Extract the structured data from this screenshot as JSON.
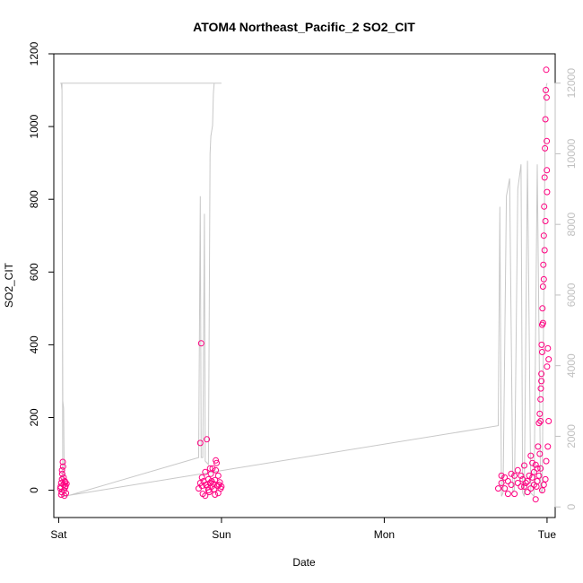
{
  "chart_data": {
    "type": "scatter",
    "title": "ATOM4 Northeast_Pacific_2 SO2_CIT",
    "xlabel": "Date",
    "ylabel": "SO2_CIT",
    "x_ticks": [
      "Sat",
      "Sun",
      "Mon",
      "Tue"
    ],
    "x_tick_values": [
      0,
      1,
      2,
      3
    ],
    "xlim": [
      -0.03,
      3.05
    ],
    "y_ticks": [
      0,
      200,
      400,
      600,
      800,
      1000,
      1200
    ],
    "ylim": [
      -75,
      1200
    ],
    "y2_ticks": [
      0,
      2000,
      4000,
      6000,
      8000,
      10000,
      12000
    ],
    "y2lim": [
      -300,
      12830
    ],
    "grid": false,
    "legend": "none",
    "colors": {
      "points": "#ff0080",
      "altitude_line": "#c8c8c8",
      "axis": "#000000",
      "right_axis": "#c0c0c0"
    },
    "series": [
      {
        "values_note_free": true,
        "points": [
          [
            0.01,
            5
          ],
          [
            0.012,
            10
          ],
          [
            0.015,
            20
          ],
          [
            0.018,
            -5
          ],
          [
            0.02,
            30
          ],
          [
            0.022,
            45
          ],
          [
            0.025,
            78
          ],
          [
            0.027,
            65
          ],
          [
            0.03,
            15
          ],
          [
            0.033,
            0
          ],
          [
            0.035,
            -15
          ],
          [
            0.038,
            25
          ],
          [
            0.04,
            8
          ],
          [
            0.042,
            12
          ],
          [
            0.045,
            -8
          ],
          [
            0.048,
            18
          ],
          [
            0.02,
            55
          ],
          [
            0.03,
            35
          ],
          [
            0.015,
            -12
          ],
          [
            0.04,
            22
          ],
          [
            0.86,
            5
          ],
          [
            0.87,
            130
          ],
          [
            0.875,
            404
          ],
          [
            0.88,
            12
          ],
          [
            0.885,
            -10
          ],
          [
            0.89,
            25
          ],
          [
            0.9,
            50
          ],
          [
            0.905,
            15
          ],
          [
            0.91,
            140
          ],
          [
            0.915,
            8
          ],
          [
            0.92,
            30
          ],
          [
            0.925,
            -5
          ],
          [
            0.93,
            20
          ],
          [
            0.935,
            45
          ],
          [
            0.94,
            10
          ],
          [
            0.945,
            60
          ],
          [
            0.95,
            18
          ],
          [
            0.955,
            3
          ],
          [
            0.96,
            28
          ],
          [
            0.965,
            82
          ],
          [
            0.97,
            75
          ],
          [
            0.975,
            12
          ],
          [
            0.98,
            -8
          ],
          [
            0.985,
            15
          ],
          [
            0.99,
            22
          ],
          [
            0.995,
            5
          ],
          [
            1.0,
            10
          ],
          [
            0.87,
            20
          ],
          [
            0.88,
            35
          ],
          [
            0.9,
            -15
          ],
          [
            0.92,
            0
          ],
          [
            0.94,
            25
          ],
          [
            0.96,
            -12
          ],
          [
            0.98,
            40
          ],
          [
            0.965,
            55
          ],
          [
            0.93,
            60
          ],
          [
            2.7,
            5
          ],
          [
            2.72,
            20
          ],
          [
            2.74,
            35
          ],
          [
            2.76,
            -10
          ],
          [
            2.78,
            15
          ],
          [
            2.8,
            40
          ],
          [
            2.82,
            55
          ],
          [
            2.84,
            10
          ],
          [
            2.85,
            30
          ],
          [
            2.86,
            68
          ],
          [
            2.87,
            20
          ],
          [
            2.88,
            -5
          ],
          [
            2.89,
            40
          ],
          [
            2.9,
            95
          ],
          [
            2.91,
            75
          ],
          [
            2.92,
            50
          ],
          [
            2.93,
            -25
          ],
          [
            2.935,
            10
          ],
          [
            2.94,
            60
          ],
          [
            2.945,
            120
          ],
          [
            2.95,
            185
          ],
          [
            2.955,
            210
          ],
          [
            2.96,
            250
          ],
          [
            2.962,
            280
          ],
          [
            2.965,
            320
          ],
          [
            2.967,
            400
          ],
          [
            2.97,
            455
          ],
          [
            2.972,
            500
          ],
          [
            2.975,
            560
          ],
          [
            2.977,
            620
          ],
          [
            2.98,
            700
          ],
          [
            2.982,
            780
          ],
          [
            2.985,
            860
          ],
          [
            2.987,
            940
          ],
          [
            2.99,
            1020
          ],
          [
            2.992,
            1100
          ],
          [
            2.995,
            1156
          ],
          [
            2.997,
            1080
          ],
          [
            2.998,
            960
          ],
          [
            2.999,
            880
          ],
          [
            3.0,
            820
          ],
          [
            2.99,
            740
          ],
          [
            2.985,
            660
          ],
          [
            2.98,
            580
          ],
          [
            2.975,
            460
          ],
          [
            2.97,
            380
          ],
          [
            2.965,
            300
          ],
          [
            2.96,
            190
          ],
          [
            3.0,
            340
          ],
          [
            3.005,
            390
          ],
          [
            3.01,
            360
          ],
          [
            3.01,
            190
          ],
          [
            3.005,
            120
          ],
          [
            2.995,
            80
          ],
          [
            2.99,
            30
          ],
          [
            2.98,
            15
          ],
          [
            2.97,
            0
          ],
          [
            2.96,
            60
          ],
          [
            2.955,
            100
          ],
          [
            2.95,
            40
          ],
          [
            2.94,
            25
          ],
          [
            2.93,
            70
          ],
          [
            2.92,
            15
          ],
          [
            2.91,
            35
          ],
          [
            2.9,
            5
          ],
          [
            2.88,
            25
          ],
          [
            2.86,
            10
          ],
          [
            2.84,
            40
          ],
          [
            2.82,
            20
          ],
          [
            2.8,
            -10
          ],
          [
            2.78,
            45
          ],
          [
            2.76,
            25
          ],
          [
            2.74,
            5
          ],
          [
            2.72,
            40
          ]
        ]
      },
      {
        "altitude_line": [
          [
            0.01,
            12000
          ],
          [
            0.015,
            12000
          ],
          [
            0.02,
            11800
          ],
          [
            0.025,
            3000
          ],
          [
            0.03,
            2800
          ],
          [
            0.035,
            300
          ],
          [
            0.045,
            300
          ],
          [
            0.86,
            1400
          ],
          [
            0.87,
            8800
          ],
          [
            0.875,
            1400
          ],
          [
            0.885,
            1400
          ],
          [
            0.895,
            8300
          ],
          [
            0.9,
            1300
          ],
          [
            0.92,
            1200
          ],
          [
            0.93,
            10000
          ],
          [
            0.935,
            10500
          ],
          [
            0.945,
            10800
          ],
          [
            0.95,
            11700
          ],
          [
            0.955,
            12000
          ],
          [
            1.0,
            12000
          ],
          [
            0.02,
            12000
          ],
          [
            0.025,
            300
          ],
          [
            2.7,
            2300
          ],
          [
            2.71,
            8500
          ],
          [
            2.72,
            300
          ],
          [
            2.73,
            400
          ],
          [
            2.75,
            8800
          ],
          [
            2.77,
            9300
          ],
          [
            2.79,
            400
          ],
          [
            2.8,
            500
          ],
          [
            2.82,
            9000
          ],
          [
            2.84,
            9700
          ],
          [
            2.85,
            400
          ],
          [
            2.86,
            300
          ],
          [
            2.88,
            9800
          ],
          [
            2.9,
            400
          ],
          [
            2.92,
            300
          ],
          [
            2.94,
            9700
          ],
          [
            2.96,
            500
          ],
          [
            2.97,
            400
          ],
          [
            2.99,
            11800
          ],
          [
            3.0,
            12000
          ]
        ]
      }
    ]
  }
}
